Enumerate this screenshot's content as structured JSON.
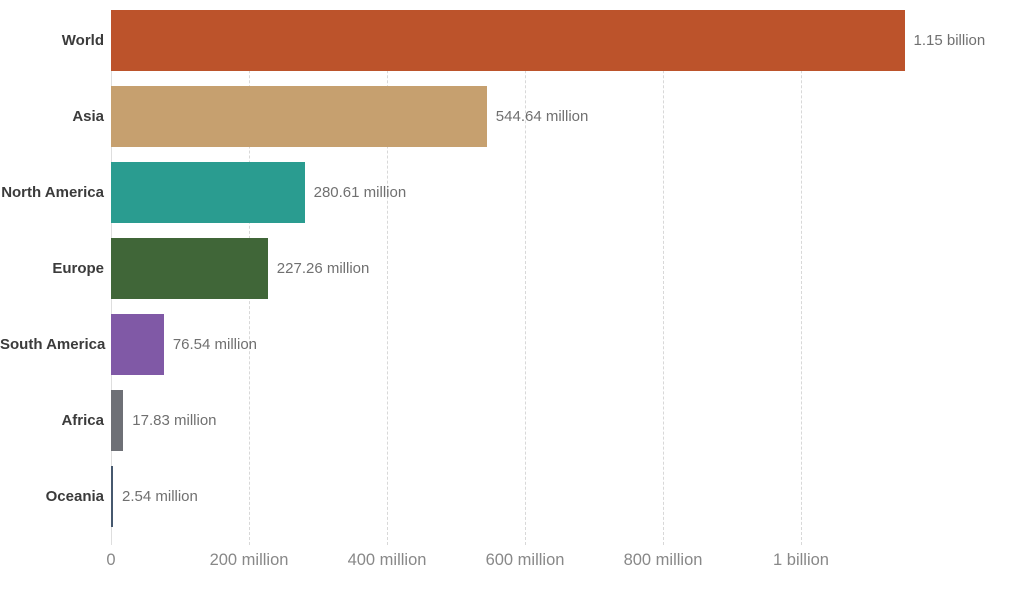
{
  "chart_data": {
    "type": "bar",
    "orientation": "horizontal",
    "title": "",
    "xlabel": "",
    "ylabel": "",
    "categories": [
      "World",
      "Asia",
      "North America",
      "Europe",
      "South America",
      "Africa",
      "Oceania"
    ],
    "values_millions": [
      1150,
      544.64,
      280.61,
      227.26,
      76.54,
      17.83,
      2.54
    ],
    "value_labels": [
      "1.15 billion",
      "544.64 million",
      "280.61 million",
      "227.26 million",
      "76.54 million",
      "17.83 million",
      "2.54 million"
    ],
    "bar_colors": [
      "#bc532b",
      "#c6a06f",
      "#2a9c90",
      "#406638",
      "#8059a6",
      "#6e7076",
      "#46586e"
    ],
    "x_ticks": [
      {
        "value_millions": 0,
        "label": "0"
      },
      {
        "value_millions": 200,
        "label": "200 million"
      },
      {
        "value_millions": 400,
        "label": "400 million"
      },
      {
        "value_millions": 600,
        "label": "600 million"
      },
      {
        "value_millions": 800,
        "label": "800 million"
      },
      {
        "value_millions": 1000,
        "label": "1 billion"
      }
    ],
    "xlim_millions": [
      0,
      1300
    ],
    "grid": "vertical-dashed",
    "legend": "none",
    "label_color": "#3b3b3b",
    "value_label_color": "#707070",
    "tick_label_color": "#888888",
    "gridline_color": "#d8d8d8"
  }
}
